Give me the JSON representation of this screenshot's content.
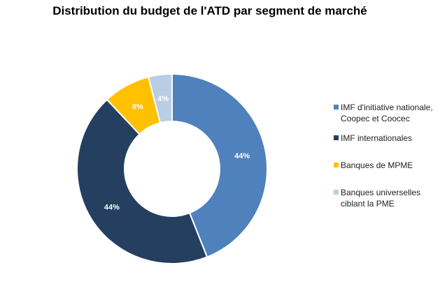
{
  "chart_data": {
    "type": "pie",
    "subtype": "donut",
    "title": "Distribution du budget de l'ATD par segment de marché",
    "slices": [
      {
        "label": "IMF d'initiative nationale, Coopec et Coocec",
        "value": 44,
        "display": "44%",
        "color": "#4f81bd",
        "label_color": "#ffffff"
      },
      {
        "label": "IMF internationales",
        "value": 44,
        "display": "44%",
        "color": "#243f60",
        "label_color": "#ffffff"
      },
      {
        "label": "Banques de MPME",
        "value": 8,
        "display": "8%",
        "color": "#ffc000",
        "label_color": "#ffffff"
      },
      {
        "label": "Banques universelles ciblant la PME",
        "value": 4,
        "display": "4%",
        "color": "#b9cde5",
        "label_color": "#ffffff"
      }
    ],
    "legend_position": "right"
  }
}
